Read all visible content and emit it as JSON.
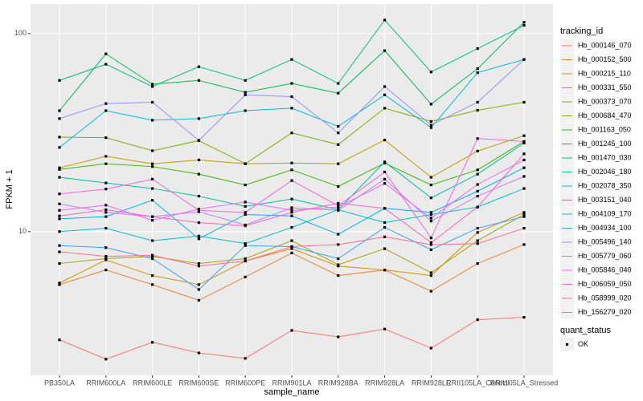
{
  "chart_data": {
    "type": "line",
    "log_scale": true,
    "grid": true,
    "x_label": "sample_name",
    "y_label": "FPKM + 1",
    "legend_title": "tracking_id",
    "legend_position": "right",
    "point_legend_title": "quant_status",
    "point_legend_label": "OK",
    "categories": [
      "PB350LA",
      "RRIM600LA",
      "RRIM600LE",
      "RRIM600SE",
      "RRIM600PE",
      "RRIM901LA",
      "RRIM928BA",
      "RRIM928LA",
      "RRIM928LE",
      "RRII105LA_Control",
      "RRII105LA_Stressed"
    ],
    "ylim": [
      1.88,
      141
    ],
    "yticks": [
      10,
      100
    ],
    "series": [
      {
        "name": "Hb_000146_070",
        "color": "#F8766D",
        "values": [
          2.84,
          2.27,
          2.76,
          2.44,
          2.29,
          3.17,
          2.94,
          3.22,
          2.58,
          3.59,
          3.69
        ]
      },
      {
        "name": "Hb_000152_500",
        "color": "#EA8331",
        "values": [
          5.4,
          6.4,
          5.4,
          4.5,
          5.9,
          7.8,
          6.0,
          6.4,
          5.0,
          6.9,
          8.6
        ]
      },
      {
        "name": "Hb_000215_110",
        "color": "#D89000",
        "values": [
          5.5,
          7.2,
          6.0,
          5.4,
          7.1,
          8.2,
          6.7,
          6.4,
          6.0,
          9.9,
          12.5
        ]
      },
      {
        "name": "Hb_000331_550",
        "color": "#C09B00",
        "values": [
          21,
          24,
          22,
          23,
          22,
          22.2,
          22,
          29,
          18.8,
          25.5,
          30.5
        ]
      },
      {
        "name": "Hb_000373_070",
        "color": "#A3A500",
        "values": [
          6.9,
          7.3,
          7.5,
          6.9,
          7.3,
          9,
          6.8,
          8.2,
          6.2,
          9,
          12.2
        ]
      },
      {
        "name": "Hb_000684_470",
        "color": "#7CAE00",
        "values": [
          30,
          29.8,
          25.6,
          28.8,
          22,
          31.5,
          27.5,
          42,
          36,
          41,
          45
        ]
      },
      {
        "name": "Hb_001163_050",
        "color": "#39B600",
        "values": [
          20.6,
          22,
          21.3,
          19.5,
          17.2,
          20.5,
          16.9,
          22.2,
          17.2,
          20.5,
          28.5
        ]
      },
      {
        "name": "Hb_001245_100",
        "color": "#00BB4E",
        "values": [
          40.8,
          79,
          55.5,
          58,
          50.5,
          56,
          50,
          82,
          44,
          66.5,
          114
        ]
      },
      {
        "name": "Hb_001470_030",
        "color": "#00BF7D",
        "values": [
          58,
          70,
          54,
          68,
          58,
          74,
          56,
          117,
          64,
          84,
          110
        ]
      },
      {
        "name": "Hb_002046_180",
        "color": "#00C1A3",
        "values": [
          18.8,
          17.6,
          16.5,
          15.1,
          13.4,
          14.6,
          12.9,
          22.5,
          14.8,
          19.5,
          28
        ]
      },
      {
        "name": "Hb_002078_350",
        "color": "#00BFC4",
        "values": [
          10,
          10.4,
          9,
          9.5,
          8.7,
          10.5,
          12.9,
          11.1,
          12.2,
          13.3,
          16.5
        ]
      },
      {
        "name": "Hb_003151_040",
        "color": "#00BAE0",
        "values": [
          26.6,
          40.8,
          36.5,
          37.2,
          40.8,
          42,
          34,
          49,
          33.5,
          63.5,
          74
        ]
      },
      {
        "name": "Hb_004109_170",
        "color": "#00B0F6",
        "values": [
          11.6,
          11.9,
          14.4,
          9.2,
          12.2,
          12,
          9.7,
          13.1,
          12.5,
          16,
          21
        ]
      },
      {
        "name": "Hb_004934_100",
        "color": "#35A2FF",
        "values": [
          8.5,
          8.3,
          7.3,
          5.1,
          8.5,
          8.4,
          7.3,
          10.5,
          8.1,
          10.4,
          11.9
        ]
      },
      {
        "name": "Hb_005496_140",
        "color": "#9590FF",
        "values": [
          37.2,
          44.3,
          45,
          28.9,
          49,
          48,
          31.5,
          54,
          34.5,
          45,
          74
        ]
      },
      {
        "name": "Hb_005779_060",
        "color": "#C77CFF",
        "values": [
          13.8,
          12.5,
          11.9,
          12.6,
          10.8,
          13.2,
          12.8,
          18.4,
          11.3,
          15.1,
          19
        ]
      },
      {
        "name": "Hb_005846_040",
        "color": "#E76BF3",
        "values": [
          12.8,
          13.6,
          11.4,
          13,
          14.1,
          12.8,
          13.3,
          17.5,
          11.7,
          17.3,
          23
        ]
      },
      {
        "name": "Hb_006059_050",
        "color": "#FA62DB",
        "values": [
          15.5,
          16.4,
          18.4,
          12.8,
          12.5,
          18.1,
          13.5,
          20,
          9.3,
          29.5,
          28.5
        ]
      },
      {
        "name": "Hb_058999_020",
        "color": "#FF62BC",
        "values": [
          12,
          12.9,
          11.9,
          11.1,
          10.7,
          12.5,
          13.9,
          13.1,
          8.8,
          13.3,
          24.7
        ]
      },
      {
        "name": "Hb_156279_020",
        "color": "#FF6C91",
        "values": [
          7.9,
          7.5,
          7.6,
          6.7,
          7.1,
          8.4,
          8.6,
          9.4,
          8.6,
          8.7,
          10.4
        ]
      }
    ]
  }
}
